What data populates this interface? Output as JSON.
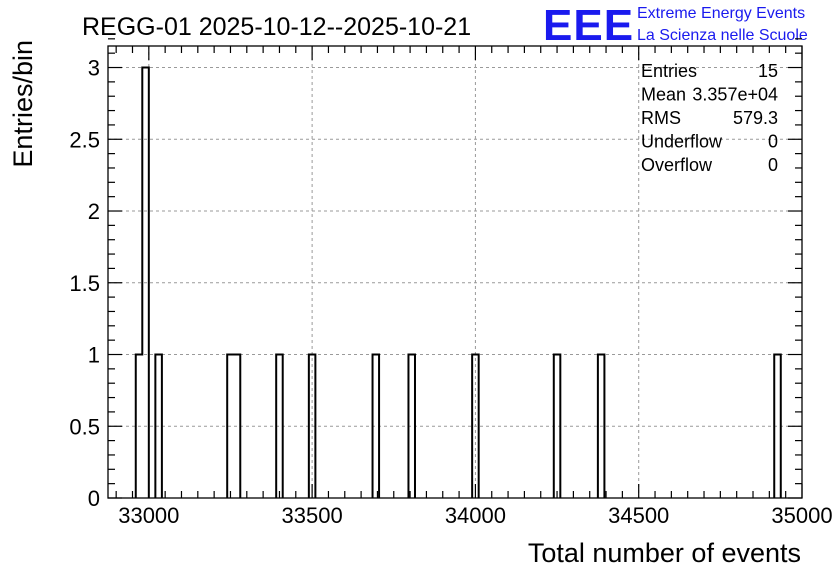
{
  "chart_data": {
    "type": "histogram",
    "title": "REGG-01 2025-10-12--2025-10-21",
    "xlabel": "Total number of events",
    "ylabel": "Entries/bin",
    "xlim": [
      32875,
      35000
    ],
    "ylim": [
      0,
      3.15
    ],
    "bin_width": 20,
    "x_ticks": [
      33000,
      33500,
      34000,
      34500,
      35000
    ],
    "x_tick_labels": [
      "33000",
      "33500",
      "34000",
      "34500",
      "35000"
    ],
    "y_ticks": [
      0,
      0.5,
      1,
      1.5,
      2,
      2.5,
      3
    ],
    "y_tick_labels": [
      "0",
      "0.5",
      "1",
      "1.5",
      "2",
      "2.5",
      "3"
    ],
    "grid": true,
    "bins": [
      {
        "x": 32960,
        "count": 1
      },
      {
        "x": 32980,
        "count": 3
      },
      {
        "x": 33020,
        "count": 1
      },
      {
        "x": 33240,
        "count": 1
      },
      {
        "x": 33260,
        "count": 1
      },
      {
        "x": 33390,
        "count": 1
      },
      {
        "x": 33490,
        "count": 1
      },
      {
        "x": 33685,
        "count": 1
      },
      {
        "x": 33795,
        "count": 1
      },
      {
        "x": 33990,
        "count": 1
      },
      {
        "x": 34240,
        "count": 1
      },
      {
        "x": 34375,
        "count": 1
      },
      {
        "x": 34915,
        "count": 1
      }
    ]
  },
  "stats_box": {
    "rows": [
      {
        "label": "Entries",
        "value": "15"
      },
      {
        "label": "Mean",
        "value": "3.357e+04"
      },
      {
        "label": "RMS",
        "value": "579.3"
      },
      {
        "label": "Underflow",
        "value": "0"
      },
      {
        "label": "Overflow",
        "value": "0"
      }
    ]
  },
  "logo": {
    "big_text": "EEE",
    "line1": "Extreme Energy Events",
    "line2": "La Scienza nelle Scuole",
    "color": "#1a1aee"
  }
}
